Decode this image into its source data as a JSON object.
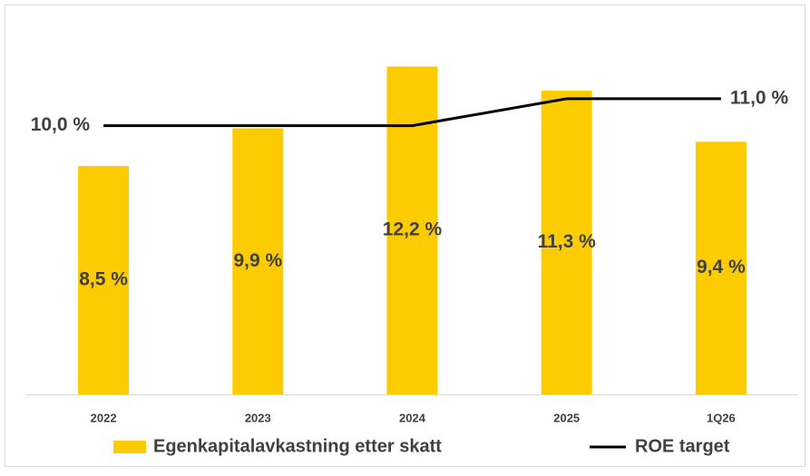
{
  "chart_data": {
    "type": "bar-line",
    "categories": [
      "2022",
      "2023",
      "2024",
      "2025",
      "1Q26"
    ],
    "series": [
      {
        "name": "Egenkapitalavkastning etter skatt",
        "type": "bar",
        "color": "#fccc00",
        "values": [
          8.5,
          9.9,
          12.2,
          11.3,
          9.4
        ],
        "value_labels": [
          "8,5 %",
          "9,9 %",
          "12,2 %",
          "11,3 %",
          "9,4 %"
        ]
      },
      {
        "name": "ROE target",
        "type": "line",
        "color": "#000000",
        "values": [
          10.0,
          10.0,
          10.0,
          11.0,
          11.0
        ],
        "value_labels": [
          "10,0 %",
          null,
          null,
          null,
          "11,0 %"
        ]
      }
    ],
    "ylim": [
      0,
      14
    ],
    "legend": "bottom"
  }
}
